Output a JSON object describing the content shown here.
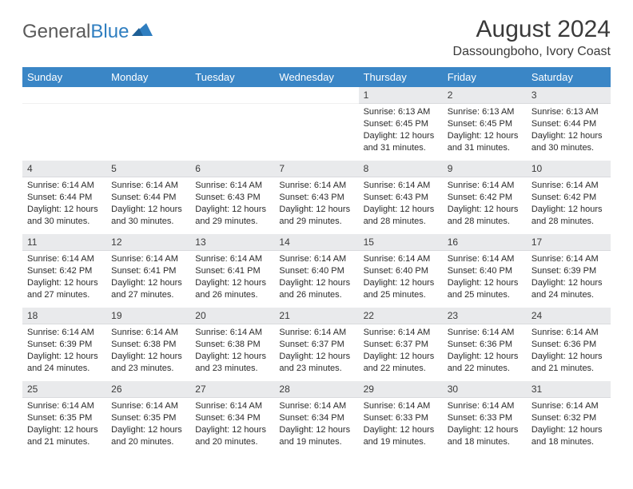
{
  "logo": {
    "text_general": "General",
    "text_blue": "Blue"
  },
  "title": "August 2024",
  "location": "Dassoungboho, Ivory Coast",
  "colors": {
    "header_bg": "#3a86c6",
    "header_fg": "#ffffff",
    "daynum_bg": "#e9eaec",
    "text": "#2b2b2b",
    "logo_gray": "#5a5a5a",
    "logo_blue": "#2f7ec0"
  },
  "days_of_week": [
    "Sunday",
    "Monday",
    "Tuesday",
    "Wednesday",
    "Thursday",
    "Friday",
    "Saturday"
  ],
  "weeks": [
    [
      null,
      null,
      null,
      null,
      {
        "n": "1",
        "sunrise": "6:13 AM",
        "sunset": "6:45 PM",
        "daylight": "12 hours and 31 minutes."
      },
      {
        "n": "2",
        "sunrise": "6:13 AM",
        "sunset": "6:45 PM",
        "daylight": "12 hours and 31 minutes."
      },
      {
        "n": "3",
        "sunrise": "6:13 AM",
        "sunset": "6:44 PM",
        "daylight": "12 hours and 30 minutes."
      }
    ],
    [
      {
        "n": "4",
        "sunrise": "6:14 AM",
        "sunset": "6:44 PM",
        "daylight": "12 hours and 30 minutes."
      },
      {
        "n": "5",
        "sunrise": "6:14 AM",
        "sunset": "6:44 PM",
        "daylight": "12 hours and 30 minutes."
      },
      {
        "n": "6",
        "sunrise": "6:14 AM",
        "sunset": "6:43 PM",
        "daylight": "12 hours and 29 minutes."
      },
      {
        "n": "7",
        "sunrise": "6:14 AM",
        "sunset": "6:43 PM",
        "daylight": "12 hours and 29 minutes."
      },
      {
        "n": "8",
        "sunrise": "6:14 AM",
        "sunset": "6:43 PM",
        "daylight": "12 hours and 28 minutes."
      },
      {
        "n": "9",
        "sunrise": "6:14 AM",
        "sunset": "6:42 PM",
        "daylight": "12 hours and 28 minutes."
      },
      {
        "n": "10",
        "sunrise": "6:14 AM",
        "sunset": "6:42 PM",
        "daylight": "12 hours and 28 minutes."
      }
    ],
    [
      {
        "n": "11",
        "sunrise": "6:14 AM",
        "sunset": "6:42 PM",
        "daylight": "12 hours and 27 minutes."
      },
      {
        "n": "12",
        "sunrise": "6:14 AM",
        "sunset": "6:41 PM",
        "daylight": "12 hours and 27 minutes."
      },
      {
        "n": "13",
        "sunrise": "6:14 AM",
        "sunset": "6:41 PM",
        "daylight": "12 hours and 26 minutes."
      },
      {
        "n": "14",
        "sunrise": "6:14 AM",
        "sunset": "6:40 PM",
        "daylight": "12 hours and 26 minutes."
      },
      {
        "n": "15",
        "sunrise": "6:14 AM",
        "sunset": "6:40 PM",
        "daylight": "12 hours and 25 minutes."
      },
      {
        "n": "16",
        "sunrise": "6:14 AM",
        "sunset": "6:40 PM",
        "daylight": "12 hours and 25 minutes."
      },
      {
        "n": "17",
        "sunrise": "6:14 AM",
        "sunset": "6:39 PM",
        "daylight": "12 hours and 24 minutes."
      }
    ],
    [
      {
        "n": "18",
        "sunrise": "6:14 AM",
        "sunset": "6:39 PM",
        "daylight": "12 hours and 24 minutes."
      },
      {
        "n": "19",
        "sunrise": "6:14 AM",
        "sunset": "6:38 PM",
        "daylight": "12 hours and 23 minutes."
      },
      {
        "n": "20",
        "sunrise": "6:14 AM",
        "sunset": "6:38 PM",
        "daylight": "12 hours and 23 minutes."
      },
      {
        "n": "21",
        "sunrise": "6:14 AM",
        "sunset": "6:37 PM",
        "daylight": "12 hours and 23 minutes."
      },
      {
        "n": "22",
        "sunrise": "6:14 AM",
        "sunset": "6:37 PM",
        "daylight": "12 hours and 22 minutes."
      },
      {
        "n": "23",
        "sunrise": "6:14 AM",
        "sunset": "6:36 PM",
        "daylight": "12 hours and 22 minutes."
      },
      {
        "n": "24",
        "sunrise": "6:14 AM",
        "sunset": "6:36 PM",
        "daylight": "12 hours and 21 minutes."
      }
    ],
    [
      {
        "n": "25",
        "sunrise": "6:14 AM",
        "sunset": "6:35 PM",
        "daylight": "12 hours and 21 minutes."
      },
      {
        "n": "26",
        "sunrise": "6:14 AM",
        "sunset": "6:35 PM",
        "daylight": "12 hours and 20 minutes."
      },
      {
        "n": "27",
        "sunrise": "6:14 AM",
        "sunset": "6:34 PM",
        "daylight": "12 hours and 20 minutes."
      },
      {
        "n": "28",
        "sunrise": "6:14 AM",
        "sunset": "6:34 PM",
        "daylight": "12 hours and 19 minutes."
      },
      {
        "n": "29",
        "sunrise": "6:14 AM",
        "sunset": "6:33 PM",
        "daylight": "12 hours and 19 minutes."
      },
      {
        "n": "30",
        "sunrise": "6:14 AM",
        "sunset": "6:33 PM",
        "daylight": "12 hours and 18 minutes."
      },
      {
        "n": "31",
        "sunrise": "6:14 AM",
        "sunset": "6:32 PM",
        "daylight": "12 hours and 18 minutes."
      }
    ]
  ],
  "labels": {
    "sunrise": "Sunrise:",
    "sunset": "Sunset:",
    "daylight": "Daylight:"
  }
}
